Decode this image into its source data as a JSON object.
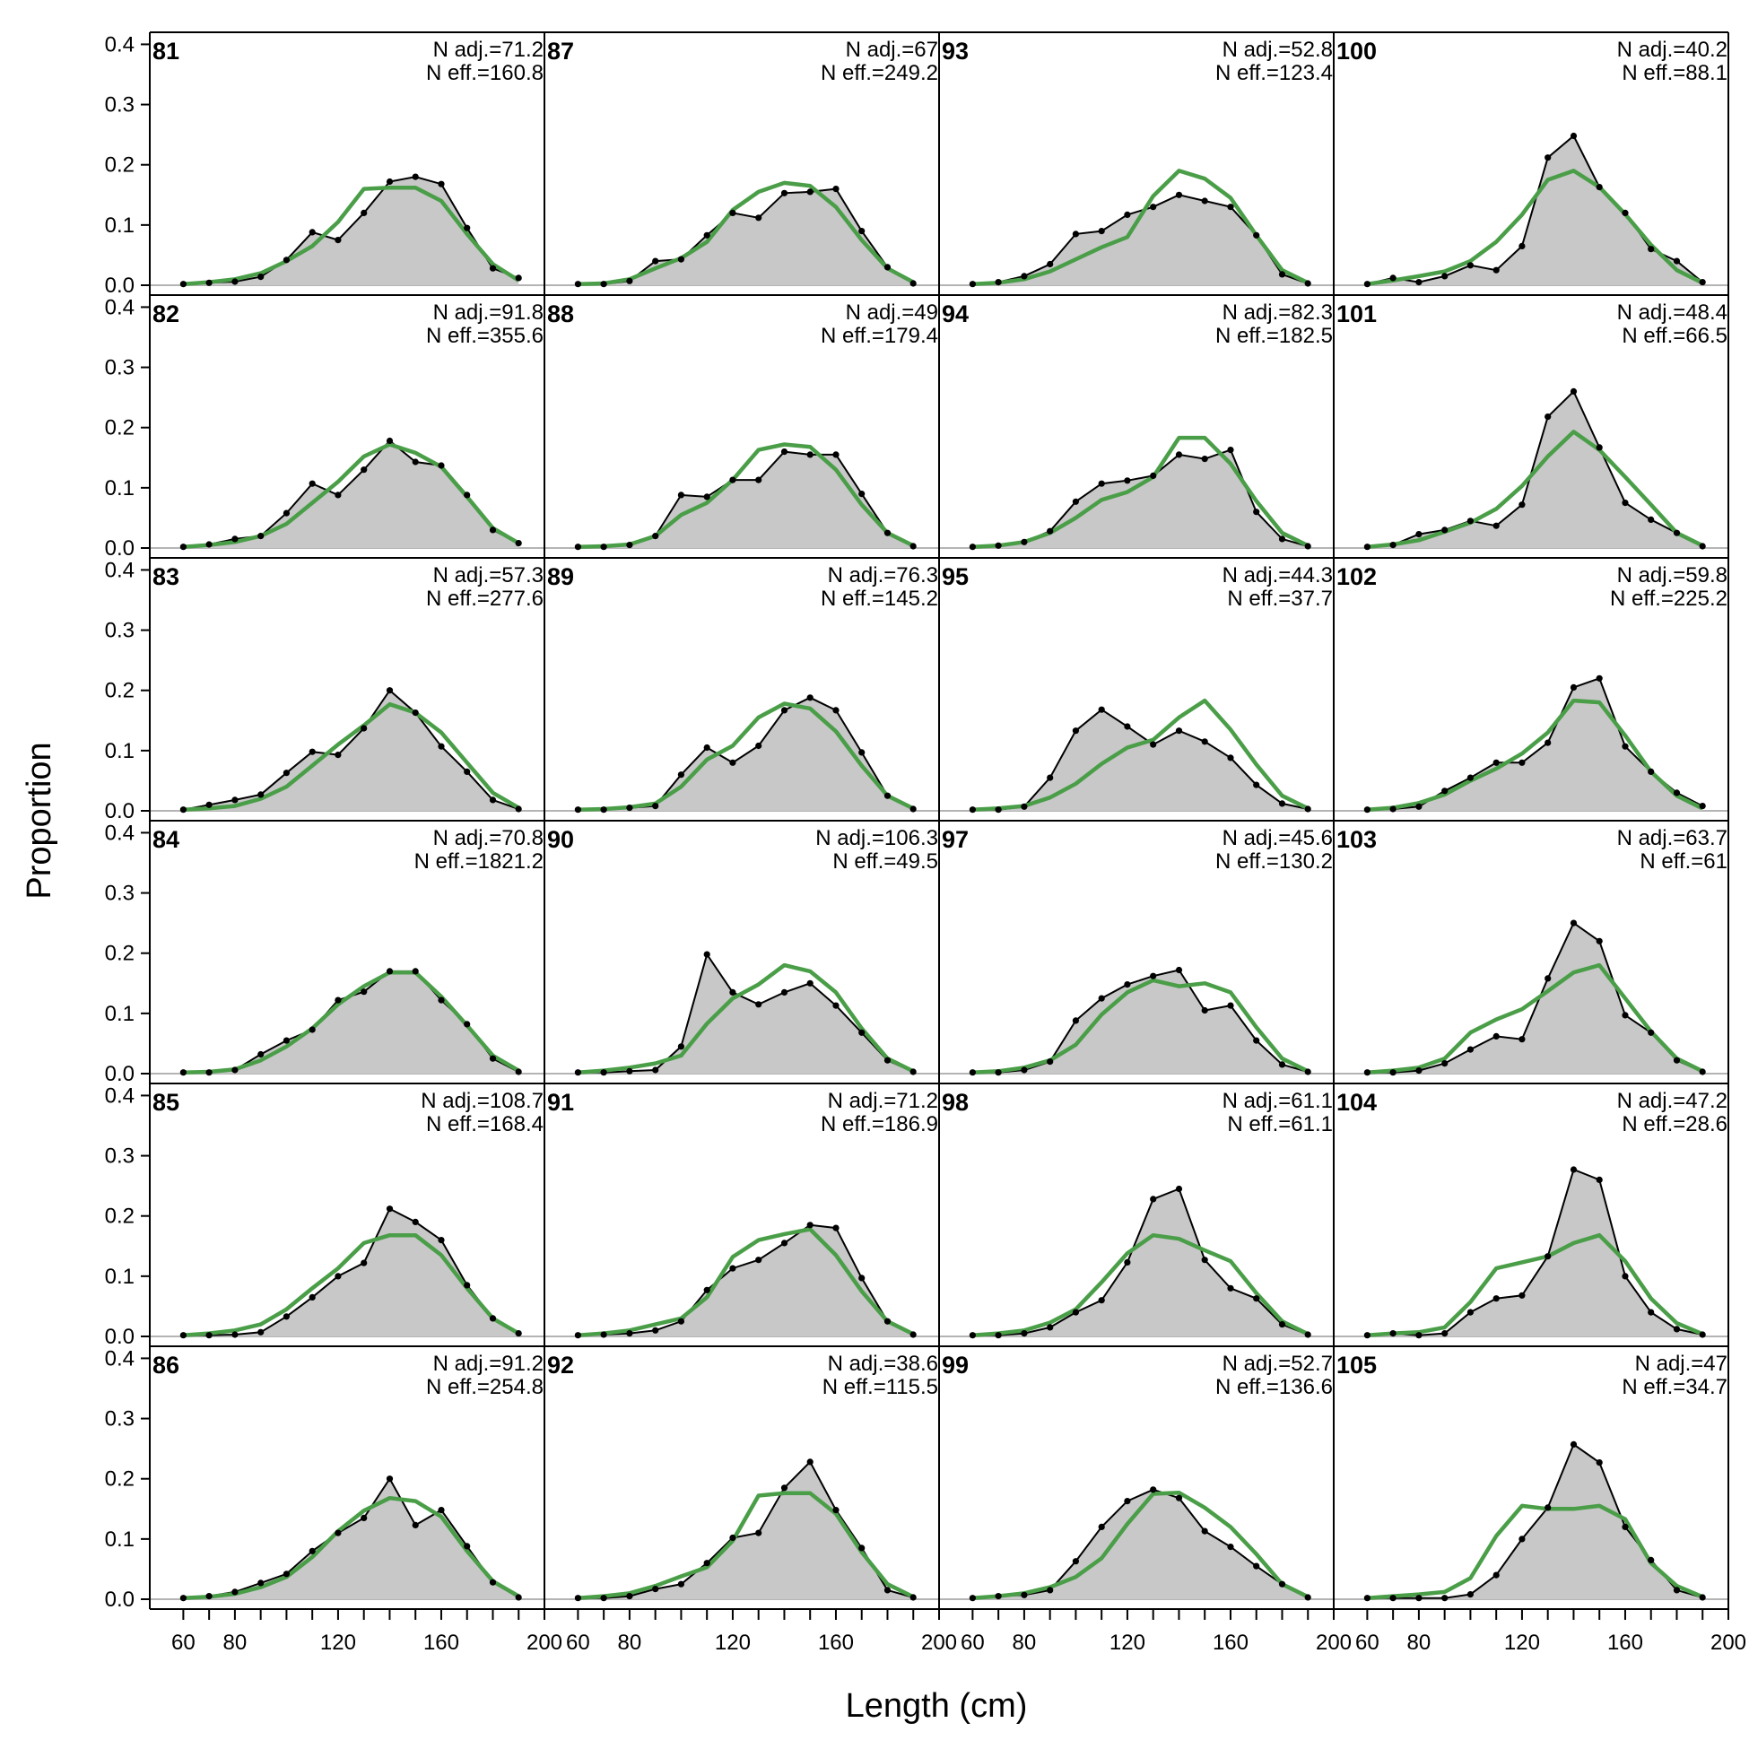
{
  "figure": {
    "xlabel": "Length (cm)",
    "ylabel": "Proportion"
  },
  "chart_data": {
    "type": "area",
    "layout": "6 rows x 4 columns, panels filled column-wise",
    "x": [
      60,
      70,
      80,
      90,
      100,
      110,
      120,
      130,
      140,
      150,
      160,
      170,
      180,
      190
    ],
    "xlim": [
      47,
      200
    ],
    "ylim": [
      0,
      0.42
    ],
    "x_ticks": [
      60,
      80,
      120,
      160,
      200
    ],
    "y_ticks": [
      "0.0",
      "0.1",
      "0.2",
      "0.3",
      "0.4"
    ],
    "series_styles": {
      "observed": {
        "fill": "#c8c8c8",
        "line": "#000000",
        "markers": true
      },
      "expected": {
        "line": "#4a9e48"
      }
    },
    "panels": [
      {
        "id": "81",
        "n_adj": "N adj.=71.2",
        "n_eff": "N eff.=160.8",
        "observed": [
          0.002,
          0.004,
          0.006,
          0.014,
          0.042,
          0.088,
          0.075,
          0.12,
          0.172,
          0.18,
          0.168,
          0.095,
          0.028,
          0.012
        ],
        "expected": [
          0.002,
          0.005,
          0.01,
          0.02,
          0.04,
          0.065,
          0.105,
          0.16,
          0.162,
          0.162,
          0.14,
          0.085,
          0.035,
          0.008
        ]
      },
      {
        "id": "82",
        "n_adj": "N adj.=91.8",
        "n_eff": "N eff.=355.6",
        "observed": [
          0.002,
          0.006,
          0.015,
          0.02,
          0.058,
          0.107,
          0.088,
          0.13,
          0.178,
          0.143,
          0.137,
          0.088,
          0.03,
          0.008
        ],
        "expected": [
          0.002,
          0.005,
          0.01,
          0.02,
          0.04,
          0.075,
          0.11,
          0.152,
          0.172,
          0.158,
          0.135,
          0.085,
          0.033,
          0.008
        ]
      },
      {
        "id": "83",
        "n_adj": "N adj.=57.3",
        "n_eff": "N eff.=277.6",
        "observed": [
          0.002,
          0.01,
          0.018,
          0.027,
          0.063,
          0.098,
          0.093,
          0.137,
          0.2,
          0.163,
          0.107,
          0.065,
          0.018,
          0.003
        ],
        "expected": [
          0.002,
          0.004,
          0.008,
          0.02,
          0.04,
          0.075,
          0.11,
          0.142,
          0.177,
          0.163,
          0.13,
          0.08,
          0.03,
          0.005
        ]
      },
      {
        "id": "84",
        "n_adj": "N adj.=70.8",
        "n_eff": "N eff.=1821.2",
        "observed": [
          0.002,
          0.002,
          0.006,
          0.032,
          0.055,
          0.073,
          0.122,
          0.136,
          0.17,
          0.17,
          0.122,
          0.082,
          0.025,
          0.003
        ],
        "expected": [
          0.002,
          0.003,
          0.007,
          0.022,
          0.045,
          0.075,
          0.115,
          0.145,
          0.168,
          0.168,
          0.128,
          0.08,
          0.03,
          0.005
        ]
      },
      {
        "id": "85",
        "n_adj": "N adj.=108.7",
        "n_eff": "N eff.=168.4",
        "observed": [
          0.002,
          0.002,
          0.003,
          0.007,
          0.033,
          0.065,
          0.1,
          0.122,
          0.212,
          0.19,
          0.16,
          0.085,
          0.03,
          0.005
        ],
        "expected": [
          0.002,
          0.005,
          0.01,
          0.02,
          0.045,
          0.08,
          0.113,
          0.155,
          0.168,
          0.168,
          0.135,
          0.08,
          0.03,
          0.005
        ]
      },
      {
        "id": "86",
        "n_adj": "N adj.=91.2",
        "n_eff": "N eff.=254.8",
        "observed": [
          0.002,
          0.005,
          0.012,
          0.027,
          0.042,
          0.08,
          0.11,
          0.135,
          0.2,
          0.123,
          0.148,
          0.088,
          0.028,
          0.003
        ],
        "expected": [
          0.002,
          0.004,
          0.009,
          0.02,
          0.037,
          0.07,
          0.113,
          0.147,
          0.168,
          0.163,
          0.137,
          0.08,
          0.03,
          0.005
        ]
      },
      {
        "id": "87",
        "n_adj": "N adj.=67",
        "n_eff": "N eff.=249.2",
        "observed": [
          0.002,
          0.002,
          0.007,
          0.04,
          0.043,
          0.083,
          0.12,
          0.112,
          0.153,
          0.155,
          0.16,
          0.09,
          0.03,
          0.003
        ],
        "expected": [
          0.002,
          0.003,
          0.01,
          0.028,
          0.045,
          0.072,
          0.125,
          0.155,
          0.17,
          0.165,
          0.13,
          0.075,
          0.028,
          0.005
        ]
      },
      {
        "id": "88",
        "n_adj": "N adj.=49",
        "n_eff": "N eff.=179.4",
        "observed": [
          0.002,
          0.002,
          0.005,
          0.02,
          0.088,
          0.085,
          0.113,
          0.113,
          0.16,
          0.155,
          0.155,
          0.09,
          0.025,
          0.003
        ],
        "expected": [
          0.002,
          0.003,
          0.006,
          0.02,
          0.055,
          0.075,
          0.113,
          0.163,
          0.172,
          0.168,
          0.13,
          0.072,
          0.025,
          0.004
        ]
      },
      {
        "id": "89",
        "n_adj": "N adj.=76.3",
        "n_eff": "N eff.=145.2",
        "observed": [
          0.002,
          0.002,
          0.005,
          0.008,
          0.06,
          0.105,
          0.08,
          0.108,
          0.167,
          0.188,
          0.167,
          0.097,
          0.025,
          0.003
        ],
        "expected": [
          0.002,
          0.003,
          0.006,
          0.012,
          0.04,
          0.085,
          0.108,
          0.155,
          0.178,
          0.17,
          0.132,
          0.075,
          0.025,
          0.004
        ]
      },
      {
        "id": "90",
        "n_adj": "N adj.=106.3",
        "n_eff": "N eff.=49.5",
        "observed": [
          0.002,
          0.002,
          0.004,
          0.006,
          0.045,
          0.198,
          0.135,
          0.115,
          0.135,
          0.15,
          0.113,
          0.068,
          0.022,
          0.003
        ],
        "expected": [
          0.002,
          0.005,
          0.01,
          0.017,
          0.03,
          0.083,
          0.125,
          0.148,
          0.18,
          0.17,
          0.135,
          0.075,
          0.025,
          0.004
        ]
      },
      {
        "id": "91",
        "n_adj": "N adj.=71.2",
        "n_eff": "N eff.=186.9",
        "observed": [
          0.002,
          0.003,
          0.005,
          0.01,
          0.025,
          0.077,
          0.113,
          0.127,
          0.155,
          0.185,
          0.18,
          0.097,
          0.025,
          0.003
        ],
        "expected": [
          0.002,
          0.005,
          0.01,
          0.02,
          0.03,
          0.065,
          0.132,
          0.16,
          0.17,
          0.178,
          0.135,
          0.075,
          0.025,
          0.004
        ]
      },
      {
        "id": "92",
        "n_adj": "N adj.=38.6",
        "n_eff": "N eff.=115.5",
        "observed": [
          0.002,
          0.002,
          0.005,
          0.017,
          0.025,
          0.06,
          0.102,
          0.11,
          0.185,
          0.228,
          0.148,
          0.085,
          0.015,
          0.003
        ],
        "expected": [
          0.002,
          0.005,
          0.01,
          0.022,
          0.038,
          0.053,
          0.097,
          0.172,
          0.176,
          0.176,
          0.142,
          0.078,
          0.025,
          0.004
        ]
      },
      {
        "id": "93",
        "n_adj": "N adj.=52.8",
        "n_eff": "N eff.=123.4",
        "observed": [
          0.002,
          0.005,
          0.015,
          0.035,
          0.085,
          0.09,
          0.117,
          0.13,
          0.15,
          0.14,
          0.13,
          0.083,
          0.018,
          0.003
        ],
        "expected": [
          0.002,
          0.004,
          0.01,
          0.023,
          0.043,
          0.063,
          0.08,
          0.148,
          0.19,
          0.177,
          0.145,
          0.083,
          0.025,
          0.004
        ]
      },
      {
        "id": "94",
        "n_adj": "N adj.=82.3",
        "n_eff": "N eff.=182.5",
        "observed": [
          0.002,
          0.004,
          0.01,
          0.028,
          0.077,
          0.107,
          0.112,
          0.12,
          0.155,
          0.148,
          0.163,
          0.06,
          0.015,
          0.003
        ],
        "expected": [
          0.002,
          0.004,
          0.01,
          0.025,
          0.05,
          0.08,
          0.093,
          0.118,
          0.183,
          0.183,
          0.14,
          0.078,
          0.025,
          0.004
        ]
      },
      {
        "id": "95",
        "n_adj": "N adj.=44.3",
        "n_eff": "N eff.=37.7",
        "observed": [
          0.002,
          0.002,
          0.007,
          0.055,
          0.133,
          0.168,
          0.14,
          0.11,
          0.133,
          0.115,
          0.088,
          0.043,
          0.012,
          0.003
        ],
        "expected": [
          0.002,
          0.004,
          0.008,
          0.022,
          0.045,
          0.078,
          0.105,
          0.118,
          0.155,
          0.183,
          0.135,
          0.077,
          0.025,
          0.004
        ]
      },
      {
        "id": "97",
        "n_adj": "N adj.=45.6",
        "n_eff": "N eff.=130.2",
        "observed": [
          0.002,
          0.002,
          0.006,
          0.02,
          0.088,
          0.125,
          0.148,
          0.162,
          0.172,
          0.105,
          0.113,
          0.055,
          0.015,
          0.003
        ],
        "expected": [
          0.002,
          0.004,
          0.01,
          0.022,
          0.048,
          0.098,
          0.135,
          0.155,
          0.145,
          0.15,
          0.135,
          0.077,
          0.025,
          0.004
        ]
      },
      {
        "id": "98",
        "n_adj": "N adj.=61.1",
        "n_eff": "N eff.=61.1",
        "observed": [
          0.002,
          0.002,
          0.005,
          0.015,
          0.04,
          0.06,
          0.123,
          0.228,
          0.245,
          0.127,
          0.08,
          0.063,
          0.02,
          0.003
        ],
        "expected": [
          0.002,
          0.005,
          0.01,
          0.023,
          0.045,
          0.09,
          0.138,
          0.168,
          0.162,
          0.143,
          0.125,
          0.072,
          0.025,
          0.004
        ]
      },
      {
        "id": "99",
        "n_adj": "N adj.=52.7",
        "n_eff": "N eff.=136.6",
        "observed": [
          0.002,
          0.005,
          0.007,
          0.015,
          0.063,
          0.12,
          0.163,
          0.182,
          0.168,
          0.113,
          0.087,
          0.055,
          0.025,
          0.003
        ],
        "expected": [
          0.002,
          0.005,
          0.01,
          0.02,
          0.037,
          0.068,
          0.125,
          0.175,
          0.177,
          0.152,
          0.12,
          0.075,
          0.025,
          0.004
        ]
      },
      {
        "id": "100",
        "n_adj": "N adj.=40.2",
        "n_eff": "N eff.=88.1",
        "observed": [
          0.002,
          0.012,
          0.005,
          0.015,
          0.033,
          0.025,
          0.065,
          0.212,
          0.248,
          0.163,
          0.12,
          0.06,
          0.04,
          0.005
        ],
        "expected": [
          0.002,
          0.008,
          0.015,
          0.023,
          0.04,
          0.072,
          0.117,
          0.175,
          0.19,
          0.163,
          0.118,
          0.067,
          0.025,
          0.004
        ]
      },
      {
        "id": "101",
        "n_adj": "N adj.=48.4",
        "n_eff": "N eff.=66.5",
        "observed": [
          0.002,
          0.005,
          0.023,
          0.03,
          0.045,
          0.037,
          0.072,
          0.218,
          0.26,
          0.167,
          0.075,
          0.047,
          0.025,
          0.003
        ],
        "expected": [
          0.002,
          0.006,
          0.013,
          0.027,
          0.042,
          0.065,
          0.103,
          0.152,
          0.193,
          0.163,
          0.118,
          0.072,
          0.025,
          0.004
        ]
      },
      {
        "id": "102",
        "n_adj": "N adj.=59.8",
        "n_eff": "N eff.=225.2",
        "observed": [
          0.002,
          0.003,
          0.007,
          0.033,
          0.055,
          0.08,
          0.08,
          0.113,
          0.205,
          0.22,
          0.107,
          0.065,
          0.03,
          0.008
        ],
        "expected": [
          0.002,
          0.005,
          0.013,
          0.027,
          0.05,
          0.07,
          0.095,
          0.13,
          0.183,
          0.18,
          0.125,
          0.065,
          0.025,
          0.004
        ]
      },
      {
        "id": "103",
        "n_adj": "N adj.=63.7",
        "n_eff": "N eff.=61",
        "observed": [
          0.002,
          0.002,
          0.005,
          0.017,
          0.04,
          0.062,
          0.057,
          0.158,
          0.25,
          0.22,
          0.097,
          0.068,
          0.022,
          0.003
        ],
        "expected": [
          0.002,
          0.005,
          0.01,
          0.025,
          0.068,
          0.09,
          0.107,
          0.137,
          0.168,
          0.18,
          0.125,
          0.07,
          0.025,
          0.004
        ]
      },
      {
        "id": "104",
        "n_adj": "N adj.=47.2",
        "n_eff": "N eff.=28.6",
        "observed": [
          0.002,
          0.005,
          0.002,
          0.005,
          0.04,
          0.063,
          0.068,
          0.133,
          0.277,
          0.26,
          0.1,
          0.04,
          0.012,
          0.003
        ],
        "expected": [
          0.002,
          0.005,
          0.007,
          0.015,
          0.057,
          0.113,
          0.123,
          0.133,
          0.155,
          0.168,
          0.125,
          0.063,
          0.022,
          0.004
        ]
      },
      {
        "id": "105",
        "n_adj": "N adj.=47",
        "n_eff": "N eff.=34.7",
        "observed": [
          0.002,
          0.002,
          0.002,
          0.002,
          0.008,
          0.04,
          0.1,
          0.152,
          0.257,
          0.227,
          0.12,
          0.065,
          0.015,
          0.003
        ],
        "expected": [
          0.002,
          0.005,
          0.008,
          0.012,
          0.035,
          0.105,
          0.155,
          0.15,
          0.15,
          0.155,
          0.133,
          0.06,
          0.022,
          0.004
        ]
      }
    ]
  }
}
